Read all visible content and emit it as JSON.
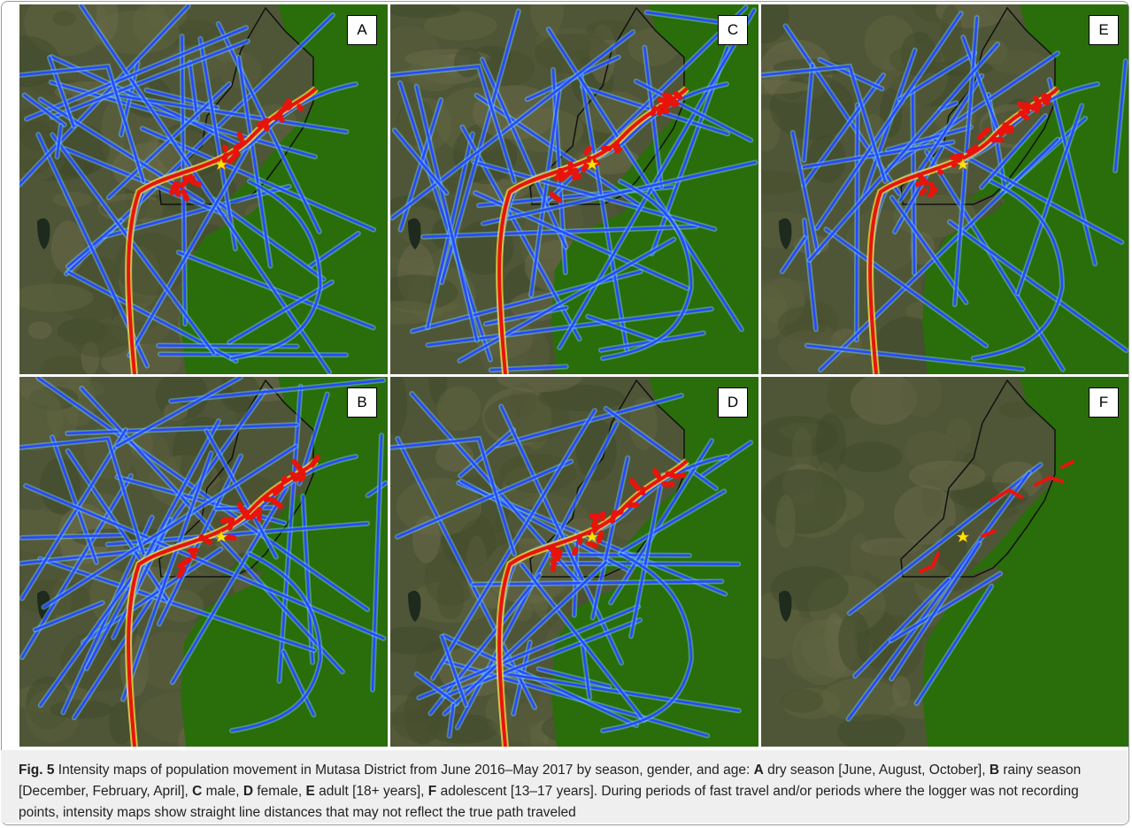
{
  "figure": {
    "panels": [
      {
        "label": "A"
      },
      {
        "label": "C"
      },
      {
        "label": "E"
      },
      {
        "label": "B"
      },
      {
        "label": "D"
      },
      {
        "label": "F"
      }
    ],
    "caption": [
      {
        "text": "Fig. 5",
        "bold": true
      },
      {
        "text": "  Intensity maps of population movement in Mutasa District from June 2016–May 2017 by season, gender, and age: ",
        "bold": false
      },
      {
        "text": "A",
        "bold": true
      },
      {
        "text": " dry season [June, August, October], ",
        "bold": false
      },
      {
        "text": "B",
        "bold": true
      },
      {
        "text": " rainy season [December, February, April], ",
        "bold": false
      },
      {
        "text": "C",
        "bold": true
      },
      {
        "text": " male, ",
        "bold": false
      },
      {
        "text": "D",
        "bold": true
      },
      {
        "text": " female, ",
        "bold": false
      },
      {
        "text": "E",
        "bold": true
      },
      {
        "text": " adult [18+ years], ",
        "bold": false
      },
      {
        "text": "F",
        "bold": true
      },
      {
        "text": " adolescent [13–17 years]. During periods of fast travel and/or periods where the logger was not recording points, intensity maps show straight line distances that may not reflect the true path traveled",
        "bold": false
      }
    ]
  }
}
